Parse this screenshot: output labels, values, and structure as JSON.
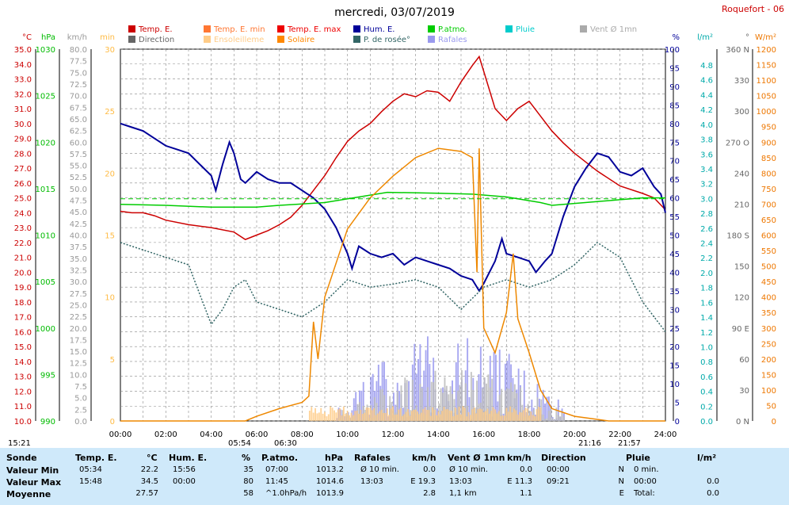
{
  "title": "mercredi, 03/07/2019",
  "station": "Roquefort - 06",
  "legend": [
    {
      "label": "Temp. E.",
      "color": "#cc0000"
    },
    {
      "label": "Temp. E. min",
      "color": "#ff7733"
    },
    {
      "label": "Temp. E. max",
      "color": "#ee0000"
    },
    {
      "label": "Hum. E.",
      "color": "#000099"
    },
    {
      "label": "P.atmo.",
      "color": "#00cc00"
    },
    {
      "label": "Pluie",
      "color": "#00cccc"
    },
    {
      "label": "Vent Ø 1mn",
      "color": "#aaaaaa"
    },
    {
      "label": "Direction",
      "color": "#666666"
    },
    {
      "label": "Ensoleilleme",
      "color": "#ffcc88"
    },
    {
      "label": "Solaire",
      "color": "#ff8800"
    },
    {
      "label": "P. de rosée°",
      "color": "#336666"
    },
    {
      "label": "Rafales",
      "color": "#9999ee"
    }
  ],
  "axes": {
    "temp": {
      "unit": "°C",
      "color": "#cc0000",
      "ticks": [
        "35.0",
        "34.0",
        "33.0",
        "32.0",
        "31.0",
        "30.0",
        "29.0",
        "28.0",
        "27.0",
        "26.0",
        "25.0",
        "24.0",
        "23.0",
        "22.0",
        "21.0",
        "20.0",
        "19.0",
        "18.0",
        "17.0",
        "16.0",
        "15.0",
        "14.0",
        "13.0",
        "12.0",
        "11.0",
        "10.0"
      ]
    },
    "pressure": {
      "unit": "hPa",
      "color": "#00bb00",
      "ticks": [
        "1030",
        "1025",
        "1020",
        "1015",
        "1010",
        "1005",
        "1000",
        "995",
        "990"
      ]
    },
    "wind": {
      "unit": "km/h",
      "color": "#999999",
      "ticks": [
        "80.0",
        "77.5",
        "75.0",
        "72.5",
        "70.0",
        "67.5",
        "65.0",
        "62.5",
        "60.0",
        "57.5",
        "55.0",
        "52.5",
        "50.0",
        "47.5",
        "45.0",
        "42.5",
        "40.0",
        "37.5",
        "35.0",
        "32.5",
        "30.0",
        "27.5",
        "25.0",
        "22.5",
        "20.0",
        "17.5",
        "15.0",
        "12.5",
        "10.0",
        "7.5",
        "5.0",
        "2.5",
        "0.0"
      ]
    },
    "minutes": {
      "unit": "min",
      "color": "#ffbb44",
      "ticks": [
        "30",
        "25",
        "20",
        "15",
        "10",
        "5",
        "0"
      ]
    },
    "humidity": {
      "unit": "%",
      "color": "#000099",
      "ticks": [
        "100",
        "95",
        "90",
        "85",
        "80",
        "75",
        "70",
        "65",
        "60",
        "55",
        "50",
        "45",
        "40",
        "35",
        "30",
        "25",
        "20",
        "15",
        "10",
        "5",
        "0"
      ]
    },
    "rain": {
      "unit": "l/m²",
      "color": "#00aaaa",
      "ticks": [
        "4.8",
        "4.6",
        "4.4",
        "4.2",
        "4.0",
        "3.8",
        "3.6",
        "3.4",
        "3.2",
        "3.0",
        "2.8",
        "2.6",
        "2.4",
        "2.2",
        "2.0",
        "1.8",
        "1.6",
        "1.4",
        "1.2",
        "1.0",
        "0.8",
        "0.6",
        "0.4",
        "0.2",
        "0.0"
      ]
    },
    "direction": {
      "unit": "°",
      "color": "#666666",
      "ticks": [
        "360 N",
        "330",
        "300",
        "270 O",
        "240",
        "210",
        "180 S",
        "150",
        "120",
        "90 E",
        "60",
        "30",
        "0 N"
      ]
    },
    "solar": {
      "unit": "W/m²",
      "color": "#ee7700",
      "ticks": [
        "1200",
        "1150",
        "1100",
        "1050",
        "1000",
        "950",
        "900",
        "850",
        "800",
        "750",
        "700",
        "650",
        "600",
        "550",
        "500",
        "450",
        "400",
        "350",
        "300",
        "250",
        "200",
        "150",
        "100",
        "50",
        "0"
      ]
    },
    "time_ticks": [
      "00:00",
      "02:00",
      "04:00",
      "06:00",
      "08:00",
      "10:00",
      "12:00",
      "14:00",
      "16:00",
      "18:00",
      "20:00",
      "22:00",
      "24:00"
    ]
  },
  "sun_markers": {
    "left": "15:21",
    "sunrise": "05:54",
    "sunrise2": "06:30",
    "sunset": "21:16",
    "sunset2": "21:57"
  },
  "chart_data": {
    "type": "line",
    "x_unit": "hours",
    "xlim": [
      0,
      24
    ],
    "series": [
      {
        "name": "Temp. E.",
        "axis": "temp",
        "color": "#cc0000",
        "points": [
          [
            0,
            24.1
          ],
          [
            0.5,
            24.0
          ],
          [
            1,
            24.0
          ],
          [
            1.5,
            23.8
          ],
          [
            2,
            23.5
          ],
          [
            3,
            23.2
          ],
          [
            4,
            23.0
          ],
          [
            5,
            22.7
          ],
          [
            5.5,
            22.2
          ],
          [
            6,
            22.5
          ],
          [
            6.5,
            22.8
          ],
          [
            7,
            23.2
          ],
          [
            7.5,
            23.7
          ],
          [
            8,
            24.5
          ],
          [
            8.5,
            25.5
          ],
          [
            9,
            26.5
          ],
          [
            9.5,
            27.7
          ],
          [
            10,
            28.8
          ],
          [
            10.5,
            29.5
          ],
          [
            11,
            30.0
          ],
          [
            11.5,
            30.8
          ],
          [
            12,
            31.5
          ],
          [
            12.5,
            32.0
          ],
          [
            13,
            31.8
          ],
          [
            13.5,
            32.2
          ],
          [
            14,
            32.1
          ],
          [
            14.5,
            31.5
          ],
          [
            15,
            32.8
          ],
          [
            15.5,
            33.9
          ],
          [
            15.8,
            34.5
          ],
          [
            16,
            33.5
          ],
          [
            16.5,
            31.0
          ],
          [
            17,
            30.2
          ],
          [
            17.5,
            31.0
          ],
          [
            18,
            31.5
          ],
          [
            18.5,
            30.5
          ],
          [
            19,
            29.5
          ],
          [
            19.5,
            28.7
          ],
          [
            20,
            28.0
          ],
          [
            21,
            26.8
          ],
          [
            22,
            25.8
          ],
          [
            23,
            25.3
          ],
          [
            23.5,
            25.0
          ],
          [
            24,
            24.2
          ]
        ]
      },
      {
        "name": "Hum. E.",
        "axis": "humidity",
        "color": "#000099",
        "points": [
          [
            0,
            80
          ],
          [
            0.5,
            79
          ],
          [
            1,
            78
          ],
          [
            1.5,
            76
          ],
          [
            2,
            74
          ],
          [
            2.5,
            73
          ],
          [
            3,
            72
          ],
          [
            3.5,
            69
          ],
          [
            4,
            66
          ],
          [
            4.2,
            62
          ],
          [
            4.5,
            69
          ],
          [
            4.8,
            75
          ],
          [
            5,
            72
          ],
          [
            5.3,
            65
          ],
          [
            5.5,
            64
          ],
          [
            6,
            67
          ],
          [
            6.5,
            65
          ],
          [
            7,
            64
          ],
          [
            7.5,
            64
          ],
          [
            8,
            62
          ],
          [
            8.5,
            60
          ],
          [
            9,
            57
          ],
          [
            9.5,
            52
          ],
          [
            10,
            45
          ],
          [
            10.2,
            41
          ],
          [
            10.5,
            47
          ],
          [
            11,
            45
          ],
          [
            11.5,
            44
          ],
          [
            12,
            45
          ],
          [
            12.5,
            42
          ],
          [
            13,
            44
          ],
          [
            13.5,
            43
          ],
          [
            14,
            42
          ],
          [
            14.5,
            41
          ],
          [
            15,
            39
          ],
          [
            15.5,
            38
          ],
          [
            15.8,
            35
          ],
          [
            16,
            37
          ],
          [
            16.5,
            43
          ],
          [
            16.8,
            49
          ],
          [
            17,
            45
          ],
          [
            17.5,
            44
          ],
          [
            18,
            43
          ],
          [
            18.3,
            40
          ],
          [
            18.7,
            43
          ],
          [
            19,
            45
          ],
          [
            19.5,
            55
          ],
          [
            20,
            63
          ],
          [
            20.5,
            68
          ],
          [
            21,
            72
          ],
          [
            21.5,
            71
          ],
          [
            22,
            67
          ],
          [
            22.5,
            66
          ],
          [
            23,
            68
          ],
          [
            23.5,
            63
          ],
          [
            23.8,
            61
          ],
          [
            24,
            56
          ]
        ]
      },
      {
        "name": "P.atmo.",
        "axis": "pressure",
        "color": "#00cc00",
        "points": [
          [
            0,
            1013.3
          ],
          [
            2,
            1013.2
          ],
          [
            4,
            1013.0
          ],
          [
            6,
            1013.0
          ],
          [
            7,
            1013.2
          ],
          [
            9,
            1013.5
          ],
          [
            11.75,
            1014.6
          ],
          [
            14,
            1014.5
          ],
          [
            15.5,
            1014.4
          ],
          [
            17,
            1014.1
          ],
          [
            18.5,
            1013.5
          ],
          [
            19,
            1013.2
          ],
          [
            20,
            1013.4
          ],
          [
            22,
            1013.8
          ],
          [
            23,
            1014.0
          ],
          [
            24,
            1014.0
          ]
        ]
      },
      {
        "name": "P. de rosée°",
        "axis": "temp",
        "color": "#336666",
        "points": [
          [
            0,
            22.0
          ],
          [
            1,
            21.5
          ],
          [
            2,
            21.0
          ],
          [
            3,
            20.5
          ],
          [
            3.5,
            18.5
          ],
          [
            4,
            16.5
          ],
          [
            4.5,
            17.5
          ],
          [
            5,
            19.0
          ],
          [
            5.5,
            19.5
          ],
          [
            6,
            18.0
          ],
          [
            7,
            17.5
          ],
          [
            8,
            17.0
          ],
          [
            9,
            18.0
          ],
          [
            10,
            19.5
          ],
          [
            11,
            19.0
          ],
          [
            12,
            19.2
          ],
          [
            13,
            19.5
          ],
          [
            14,
            19.0
          ],
          [
            15,
            17.5
          ],
          [
            16,
            19.0
          ],
          [
            17,
            19.5
          ],
          [
            18,
            19.0
          ],
          [
            19,
            19.5
          ],
          [
            20,
            20.5
          ],
          [
            21,
            22.0
          ],
          [
            22,
            21.0
          ],
          [
            23,
            18.0
          ],
          [
            24,
            16.0
          ]
        ]
      },
      {
        "name": "Solaire",
        "axis": "solar",
        "color": "#ee8800",
        "points": [
          [
            0,
            0
          ],
          [
            5.5,
            0
          ],
          [
            6,
            15
          ],
          [
            7,
            40
          ],
          [
            8,
            60
          ],
          [
            8.3,
            80
          ],
          [
            8.5,
            320
          ],
          [
            8.7,
            200
          ],
          [
            9,
            400
          ],
          [
            10,
            620
          ],
          [
            11,
            720
          ],
          [
            12,
            790
          ],
          [
            13,
            850
          ],
          [
            14,
            880
          ],
          [
            15,
            870
          ],
          [
            15.5,
            850
          ],
          [
            15.7,
            480
          ],
          [
            15.8,
            880
          ],
          [
            16,
            300
          ],
          [
            16.5,
            220
          ],
          [
            17,
            350
          ],
          [
            17.3,
            540
          ],
          [
            17.5,
            330
          ],
          [
            18,
            220
          ],
          [
            18.5,
            100
          ],
          [
            19,
            40
          ],
          [
            20,
            15
          ],
          [
            21,
            5
          ],
          [
            21.5,
            0
          ],
          [
            24,
            0
          ]
        ]
      }
    ],
    "bars": [
      {
        "name": "Rafales",
        "axis": "wind",
        "color": "#9999ee",
        "range": [
          9.5,
          19.5
        ],
        "max": 19.3
      },
      {
        "name": "Vent Ø 1mn",
        "axis": "wind",
        "color": "#bbbbbb",
        "range": [
          9.5,
          19.5
        ],
        "max": 11.3
      },
      {
        "name": "Ensoleilleme",
        "axis": "minutes",
        "color": "#ffcc88",
        "range": [
          8.3,
          18.5
        ],
        "max": 1.2
      }
    ],
    "ylim_temp": [
      10,
      35
    ],
    "ylim_pressure": [
      990,
      1030
    ],
    "ylim_wind": [
      0,
      80
    ],
    "ylim_humidity": [
      0,
      100
    ],
    "ylim_rain": [
      0,
      5
    ],
    "ylim_direction": [
      0,
      360
    ],
    "ylim_solar": [
      0,
      1200
    ]
  },
  "table": {
    "headers": [
      "Sonde",
      "Temp. E.",
      "°C",
      "Hum. E.",
      "%",
      "P.atmo.",
      "hPa",
      "Rafales",
      "km/h",
      "Vent Ø 1mn",
      "km/h",
      "Direction",
      "",
      "Pluie",
      "l/m²"
    ],
    "rows": [
      {
        "label": "Valeur Min",
        "t_time": "05:34",
        "t_val": "22.2",
        "h_time": "15:56",
        "h_val": "35",
        "p_time": "07:00",
        "p_val": "1013.2",
        "r_time": "Ø 10 min.",
        "r_val": "0.0",
        "v_time": "Ø 10 min.",
        "v_val": "0.0",
        "d_time": "00:00",
        "d_val": "N",
        "pl_time": "0 min.",
        "pl_val": ""
      },
      {
        "label": "Valeur Max",
        "t_time": "15:48",
        "t_val": "34.5",
        "h_time": "00:00",
        "h_val": "80",
        "p_time": "11:45",
        "p_val": "1014.6",
        "r_time": "13:03",
        "r_val": "E 19.3",
        "v_time": "13:03",
        "v_val": "E 11.3",
        "d_time": "09:21",
        "d_val": "N",
        "pl_time": "00:00",
        "pl_val": "0.0"
      },
      {
        "label": "Moyenne",
        "t_time": "",
        "t_val": "27.57",
        "h_time": "",
        "h_val": "58",
        "p_time": "^1.0hPa/h",
        "p_val": "1013.9",
        "r_time": "",
        "r_val": "2.8",
        "v_time": "1,1 km",
        "v_val": "1.1",
        "d_time": "",
        "d_val": "E",
        "pl_time": "Total:",
        "pl_val": "0.0"
      }
    ]
  }
}
